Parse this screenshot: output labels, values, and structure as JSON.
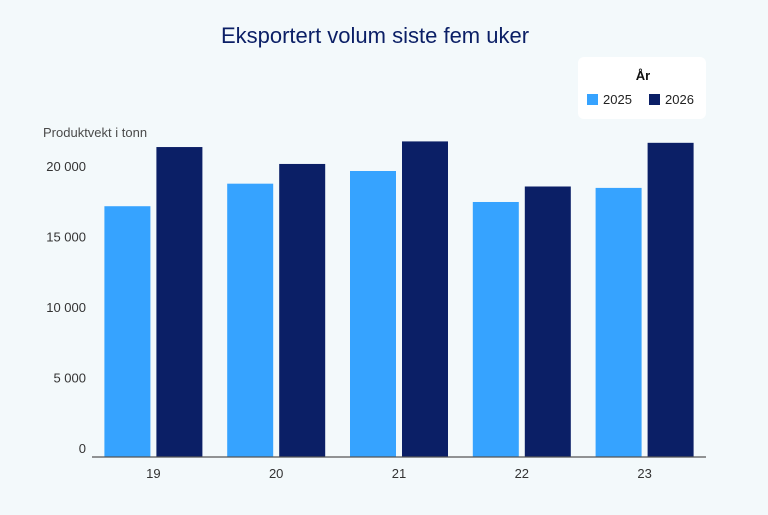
{
  "chart_data": {
    "type": "bar",
    "title": "Eksportert volum siste fem uker",
    "ylabel": "Produktvekt i tonn",
    "xlabel": "",
    "categories": [
      "19",
      "20",
      "21",
      "22",
      "23"
    ],
    "ylim": [
      0,
      22500
    ],
    "yticks": [
      0,
      5000,
      10000,
      15000,
      20000
    ],
    "ytick_labels": [
      "0",
      "5 000",
      "10 000",
      "15 000",
      "20 000"
    ],
    "legend": {
      "title": "År",
      "position": "top-right"
    },
    "series": [
      {
        "name": "2025",
        "color": "#36a3ff",
        "values": [
          17800,
          19400,
          20300,
          18100,
          19100
        ]
      },
      {
        "name": "2026",
        "color": "#0b1f66",
        "values": [
          22000,
          20800,
          22400,
          19200,
          22300
        ]
      }
    ],
    "grid": false
  }
}
